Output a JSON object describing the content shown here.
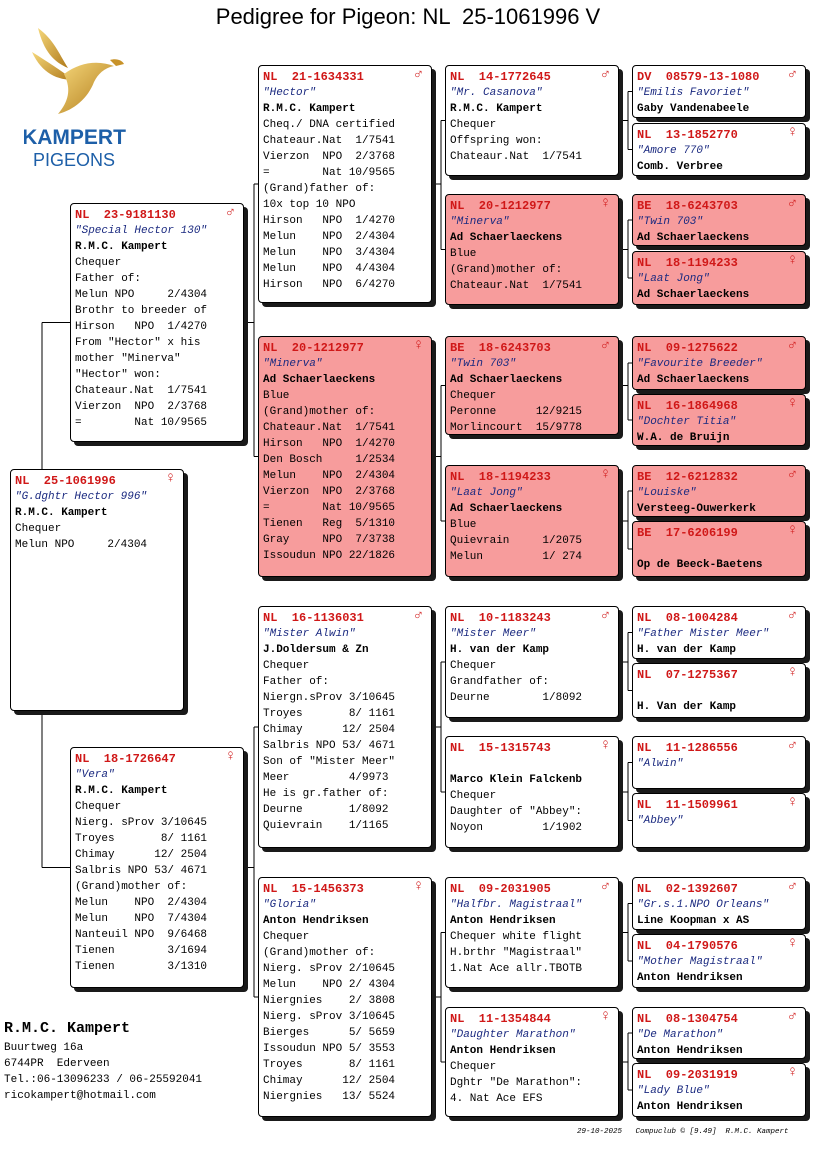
{
  "title": "Pedigree for Pigeon: NL  25-1061996 V",
  "logo": {
    "brand": "KAMPERT",
    "tagline": "PIGEONS"
  },
  "pigeons": [
    {
      "ring": "NL  25-1061996",
      "sex": "♀",
      "name": "\"G.dghtr Hector 996\"",
      "owner": "R.M.C. Kampert",
      "lines": [
        "Chequer",
        "Melun NPO     2/4304"
      ],
      "color": "#ffffff"
    },
    {
      "ring": "NL  23-9181130",
      "sex": "♂",
      "name": "\"Special Hector 130\"",
      "owner": "R.M.C. Kampert",
      "lines": [
        "Chequer",
        "Father of:",
        "Melun NPO     2/4304",
        "Brothr to breeder of",
        "Hirson   NPO  1/4270",
        "From \"Hector\" x his",
        "mother \"Minerva\"",
        "\"Hector\" won:",
        "Chateaur.Nat  1/7541",
        "Vierzon  NPO  2/3768",
        "=        Nat 10/9565"
      ],
      "color": "#ffffff"
    },
    {
      "ring": "NL  18-1726647",
      "sex": "♀",
      "name": "\"Vera\"",
      "owner": "R.M.C. Kampert",
      "lines": [
        "Chequer",
        "Nierg. sProv 3/10645",
        "Troyes       8/ 1161",
        "Chimay      12/ 2504",
        "Salbris NPO 53/ 4671",
        "(Grand)mother of:",
        "Melun    NPO  2/4304",
        "Melun    NPO  7/4304",
        "Nanteuil NPO  9/6468",
        "Tienen        3/1694",
        "Tienen        3/1310"
      ],
      "color": "#ffffff"
    },
    {
      "ring": "NL  21-1634331",
      "sex": "♂",
      "name": "\"Hector\"",
      "owner": "R.M.C. Kampert",
      "lines": [
        "Cheq./ DNA certified",
        "Chateaur.Nat  1/7541",
        "Vierzon  NPO  2/3768",
        "=        Nat 10/9565",
        "(Grand)father of:",
        "10x top 10 NPO",
        "Hirson   NPO  1/4270",
        "Melun    NPO  2/4304",
        "Melun    NPO  3/4304",
        "Melun    NPO  4/4304",
        "Hirson   NPO  6/4270"
      ],
      "color": "#ffffff"
    },
    {
      "ring": "NL  20-1212977",
      "sex": "♀",
      "name": "\"Minerva\"",
      "owner": "Ad Schaerlaeckens",
      "lines": [
        "Blue",
        "(Grand)mother of:",
        "Chateaur.Nat  1/7541",
        "Hirson   NPO  1/4270",
        "Den Bosch     1/2534",
        "Melun    NPO  2/4304",
        "Vierzon  NPO  2/3768",
        "=        Nat 10/9565",
        "Tienen   Reg  5/1310",
        "Gray     NPO  7/3738",
        "Issoudun NPO 22/1826"
      ],
      "color": "#f79c9c"
    },
    {
      "ring": "NL  16-1136031",
      "sex": "♂",
      "name": "\"Mister Alwin\"",
      "owner": "J.Doldersum & Zn",
      "lines": [
        "Chequer",
        "Father of:",
        "Niergn.sProv 3/10645",
        "Troyes       8/ 1161",
        "Chimay      12/ 2504",
        "Salbris NPO 53/ 4671",
        "Son of \"Mister Meer\"",
        "Meer         4/9973",
        "He is gr.father of:",
        "Deurne       1/8092",
        "Quievrain    1/1165"
      ],
      "color": "#ffffff"
    },
    {
      "ring": "NL  15-1456373",
      "sex": "♀",
      "name": "\"Gloria\"",
      "owner": "Anton Hendriksen",
      "lines": [
        "Chequer",
        "(Grand)mother of:",
        "Nierg. sProv 2/10645",
        "Melun    NPO 2/ 4304",
        "Niergnies    2/ 3808",
        "Nierg. sProv 3/10645",
        "Bierges      5/ 5659",
        "Issoudun NPO 5/ 3553",
        "Troyes       8/ 1161",
        "Chimay      12/ 2504",
        "Niergnies   13/ 5524"
      ],
      "color": "#ffffff"
    },
    {
      "ring": "NL  14-1772645",
      "sex": "♂",
      "name": "\"Mr. Casanova\"",
      "owner": "R.M.C. Kampert",
      "lines": [
        "Chequer",
        "Offspring won:",
        "Chateaur.Nat  1/7541"
      ],
      "color": "#ffffff"
    },
    {
      "ring": "NL  20-1212977",
      "sex": "♀",
      "name": "\"Minerva\"",
      "owner": "Ad Schaerlaeckens",
      "lines": [
        "Blue",
        "(Grand)mother of:",
        "Chateaur.Nat  1/7541"
      ],
      "color": "#f79c9c"
    },
    {
      "ring": "BE  18-6243703",
      "sex": "♂",
      "name": "\"Twin 703\"",
      "owner": "Ad Schaerlaeckens",
      "lines": [
        "Chequer",
        "Peronne      12/9215",
        "Morlincourt  15/9778"
      ],
      "color": "#f79c9c"
    },
    {
      "ring": "NL  18-1194233",
      "sex": "♀",
      "name": "\"Laat Jong\"",
      "owner": "Ad Schaerlaeckens",
      "lines": [
        "Blue",
        "Quievrain     1/2075",
        "Melun         1/ 274"
      ],
      "color": "#f79c9c"
    },
    {
      "ring": "NL  10-1183243",
      "sex": "♂",
      "name": "\"Mister Meer\"",
      "owner": "H. van der Kamp",
      "lines": [
        "Chequer",
        "Grandfather of:",
        "Deurne        1/8092"
      ],
      "color": "#ffffff"
    },
    {
      "ring": "NL  15-1315743",
      "sex": "♀",
      "owner": "Marco Klein Falckenb",
      "lines": [
        "Chequer",
        "Daughter of \"Abbey\":",
        "Noyon         1/1902"
      ],
      "color": "#ffffff"
    },
    {
      "ring": "NL  09-2031905",
      "sex": "♂",
      "name": "\"Halfbr. Magistraal\"",
      "owner": "Anton Hendriksen",
      "lines": [
        "Chequer white flight",
        "H.brthr \"Magistraal\"",
        "1.Nat Ace allr.TBOTB"
      ],
      "color": "#ffffff"
    },
    {
      "ring": "NL  11-1354844",
      "sex": "♀",
      "name": "\"Daughter Marathon\"",
      "owner": "Anton Hendriksen",
      "lines": [
        "Chequer",
        "Dghtr \"De Marathon\":",
        "4. Nat Ace EFS"
      ],
      "color": "#ffffff"
    },
    {
      "ring": "DV  08579-13-1080",
      "sex": "♂",
      "name": "\"Emilis Favoriet\"",
      "owner": "Gaby Vandenabeele",
      "color": "#ffffff"
    },
    {
      "ring": "NL  13-1852770",
      "sex": "♀",
      "name": "\"Amore 770\"",
      "owner": "Comb. Verbree",
      "color": "#ffffff"
    },
    {
      "ring": "BE  18-6243703",
      "sex": "♂",
      "name": "\"Twin 703\"",
      "owner": "Ad Schaerlaeckens",
      "color": "#f79c9c"
    },
    {
      "ring": "NL  18-1194233",
      "sex": "♀",
      "name": "\"Laat Jong\"",
      "owner": "Ad Schaerlaeckens",
      "color": "#f79c9c"
    },
    {
      "ring": "NL  09-1275622",
      "sex": "♂",
      "name": "\"Favourite Breeder\"",
      "owner": "Ad Schaerlaeckens",
      "color": "#f79c9c"
    },
    {
      "ring": "NL  16-1864968",
      "sex": "♀",
      "name": "\"Dochter Titia\"",
      "owner": "W.A. de Bruijn",
      "color": "#f79c9c"
    },
    {
      "ring": "BE  12-6212832",
      "sex": "♂",
      "name": "\"Louiske\"",
      "owner": "Versteeg-Ouwerkerk",
      "color": "#f79c9c"
    },
    {
      "ring": "BE  17-6206199",
      "sex": "♀",
      "owner": "Op de Beeck-Baetens",
      "color": "#f79c9c"
    },
    {
      "ring": "NL  08-1004284",
      "sex": "♂",
      "name": "\"Father Mister Meer\"",
      "owner": "H. van der Kamp",
      "color": "#ffffff"
    },
    {
      "ring": "NL  07-1275367",
      "sex": "♀",
      "owner": "H. Van der Kamp",
      "color": "#ffffff"
    },
    {
      "ring": "NL  11-1286556",
      "sex": "♂",
      "name": "\"Alwin\"",
      "color": "#ffffff"
    },
    {
      "ring": "NL  11-1509961",
      "sex": "♀",
      "name": "\"Abbey\"",
      "color": "#ffffff"
    },
    {
      "ring": "NL  02-1392607",
      "sex": "♂",
      "name": "\"Gr.s.1.NPO Orleans\"",
      "owner": "Line Koopman x AS",
      "color": "#ffffff"
    },
    {
      "ring": "NL  04-1790576",
      "sex": "♀",
      "name": "\"Mother Magistraal\"",
      "owner": "Anton Hendriksen",
      "color": "#ffffff"
    },
    {
      "ring": "NL  08-1304754",
      "sex": "♂",
      "name": "\"De Marathon\"",
      "owner": "Anton Hendriksen",
      "color": "#ffffff"
    },
    {
      "ring": "NL  09-2031919",
      "sex": "♀",
      "name": "\"Lady Blue\"",
      "owner": "Anton Hendriksen",
      "color": "#ffffff"
    }
  ],
  "breeder": {
    "name": "R.M.C. Kampert",
    "lines": [
      "Buurtweg 16a",
      "6744PR  Ederveen",
      "Tel.:06-13096233 / 06-25592041",
      "ricokampert@hotmail.com"
    ]
  },
  "footer": {
    "date": "29-10-2025",
    "software": "Compuclub © [9.49]  R.M.C. Kampert"
  }
}
